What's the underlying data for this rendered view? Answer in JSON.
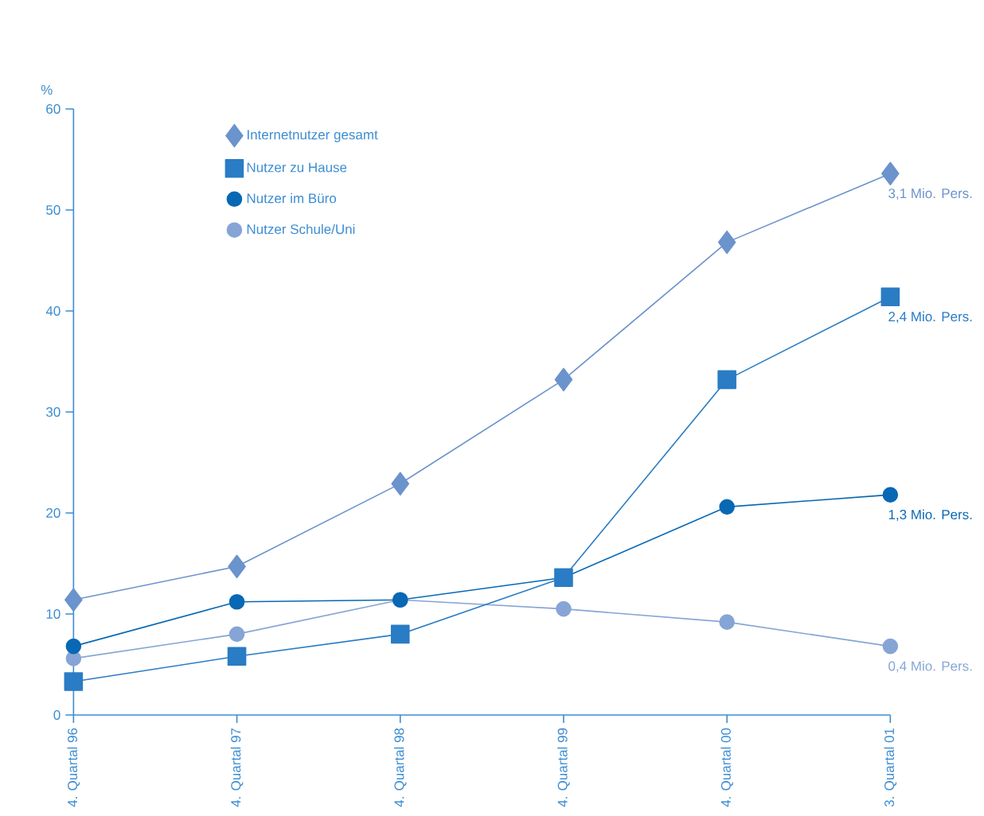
{
  "chart_data": {
    "type": "line",
    "ylabel": "%",
    "categories": [
      "4. Quartal 96",
      "4. Quartal 97",
      "4. Quartal 98",
      "4. Quartal 99",
      "4. Quartal 00",
      "3. Quartal 01"
    ],
    "series": [
      {
        "name": "Internetnutzer gesamt",
        "color": "#6b93cc",
        "marker": "diamond",
        "values": [
          11.4,
          14.7,
          22.9,
          33.2,
          46.8,
          53.6
        ]
      },
      {
        "name": "Nutzer zu Hause",
        "color": "#2a7cc4",
        "marker": "square",
        "values": [
          3.3,
          5.8,
          8.0,
          13.6,
          33.2,
          41.4
        ]
      },
      {
        "name": "Nutzer im Büro",
        "color": "#0868b4",
        "marker": "circle",
        "values": [
          6.8,
          11.2,
          11.4,
          13.6,
          20.6,
          21.8
        ]
      },
      {
        "name": "Nutzer Schule/Uni",
        "color": "#86a5d6",
        "marker": "circle",
        "values": [
          5.6,
          8.0,
          11.4,
          10.5,
          9.2,
          6.8
        ]
      }
    ],
    "annotations": [
      {
        "text": "3,1 Mio. Pers.",
        "x": "3. Quartal 01",
        "y": 53.6
      },
      {
        "text": "2,4 Mio. Pers.",
        "x": "3. Quartal 01",
        "y": 41.4
      },
      {
        "text": "1,3 Mio. Pers.",
        "x": "3. Quartal 01",
        "y": 21.8
      },
      {
        "text": "0,4 Mio. Pers.",
        "x": "3. Quartal 01",
        "y": 6.8
      }
    ],
    "ylim": [
      0,
      60
    ],
    "yticks": [
      0,
      10,
      20,
      30,
      40,
      50,
      60
    ],
    "grid": false,
    "legend": "top left",
    "line_style": "solid"
  }
}
